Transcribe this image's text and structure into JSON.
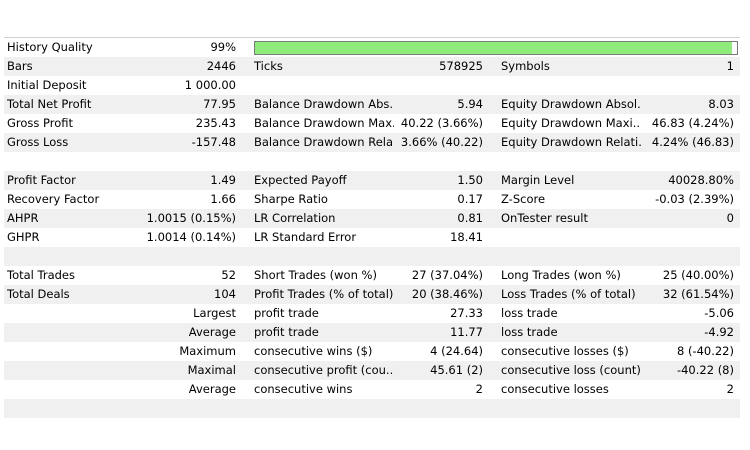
{
  "history_quality": {
    "label": "History Quality",
    "value": "99%",
    "fill_fraction": 0.99,
    "bar_color": "#8fec7c"
  },
  "rows": [
    [
      "Bars",
      "2446",
      "Ticks",
      "578925",
      "Symbols",
      "1"
    ],
    [
      "Initial Deposit",
      "1 000.00",
      "",
      "",
      "",
      ""
    ],
    [
      "Total Net Profit",
      "77.95",
      "Balance Drawdown Abs...",
      "5.94",
      "Equity Drawdown Absol...",
      "8.03"
    ],
    [
      "Gross Profit",
      "235.43",
      "Balance Drawdown Max...",
      "40.22 (3.66%)",
      "Equity Drawdown Maxi...",
      "46.83 (4.24%)"
    ],
    [
      "Gross Loss",
      "-157.48",
      "Balance Drawdown Rela...",
      "3.66% (40.22)",
      "Equity Drawdown Relati...",
      "4.24% (46.83)"
    ],
    [
      "",
      "",
      "",
      "",
      "",
      ""
    ],
    [
      "Profit Factor",
      "1.49",
      "Expected Payoff",
      "1.50",
      "Margin Level",
      "40028.80%"
    ],
    [
      "Recovery Factor",
      "1.66",
      "Sharpe Ratio",
      "0.17",
      "Z-Score",
      "-0.03 (2.39%)"
    ],
    [
      "AHPR",
      "1.0015 (0.15%)",
      "LR Correlation",
      "0.81",
      "OnTester result",
      "0"
    ],
    [
      "GHPR",
      "1.0014 (0.14%)",
      "LR Standard Error",
      "18.41",
      "",
      ""
    ],
    [
      "",
      "",
      "",
      "",
      "",
      ""
    ],
    [
      "Total Trades",
      "52",
      "Short Trades (won %)",
      "27 (37.04%)",
      "Long Trades (won %)",
      "25 (40.00%)"
    ],
    [
      "Total Deals",
      "104",
      "Profit Trades (% of total)",
      "20 (38.46%)",
      "Loss Trades (% of total)",
      "32 (61.54%)"
    ],
    [
      "",
      "Largest",
      "profit trade",
      "27.33",
      "loss trade",
      "-5.06"
    ],
    [
      "",
      "Average",
      "profit trade",
      "11.77",
      "loss trade",
      "-4.92"
    ],
    [
      "",
      "Maximum",
      "consecutive wins ($)",
      "4 (24.64)",
      "consecutive losses ($)",
      "8 (-40.22)"
    ],
    [
      "",
      "Maximal",
      "consecutive profit (cou...",
      "45.61 (2)",
      "consecutive loss (count)",
      "-40.22 (8)"
    ],
    [
      "",
      "Average",
      "consecutive wins",
      "2",
      "consecutive losses",
      "2"
    ],
    [
      "",
      "",
      "",
      "",
      "",
      ""
    ]
  ]
}
